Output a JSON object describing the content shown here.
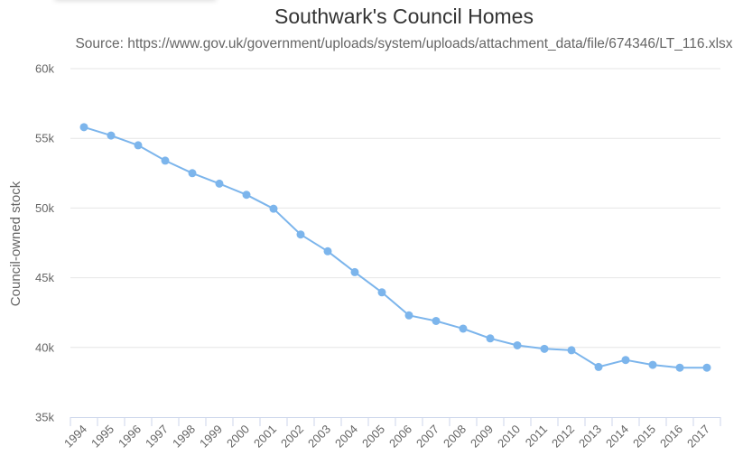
{
  "chart_data": {
    "type": "line",
    "title": "Southwark's Council Homes",
    "subtitle": "Source: https://www.gov.uk/government/uploads/system/uploads/attachment_data/file/674346/LT_116.xlsx",
    "xlabel": "",
    "ylabel": "Council-owned stock",
    "categories": [
      "1994",
      "1995",
      "1996",
      "1997",
      "1998",
      "1999",
      "2000",
      "2001",
      "2002",
      "2003",
      "2004",
      "2005",
      "2006",
      "2007",
      "2008",
      "2009",
      "2010",
      "2011",
      "2012",
      "2013",
      "2014",
      "2015",
      "2016",
      "2017"
    ],
    "series": [
      {
        "values": [
          55800,
          55200,
          54500,
          53400,
          52500,
          51750,
          50950,
          49950,
          48100,
          46900,
          45400,
          43950,
          42300,
          41900,
          41350,
          40650,
          40150,
          39900,
          39800,
          38600,
          39100,
          38750,
          38550,
          38550
        ]
      }
    ],
    "yticks": [
      "35k",
      "40k",
      "45k",
      "50k",
      "55k",
      "60k"
    ],
    "ytick_values": [
      35000,
      40000,
      45000,
      50000,
      55000,
      60000
    ],
    "ylim": [
      35000,
      60000
    ],
    "grid": true,
    "legend": false,
    "colors": {
      "line": "#7cb5ec",
      "grid": "#e6e6e6",
      "axis": "#ccd6eb"
    }
  }
}
